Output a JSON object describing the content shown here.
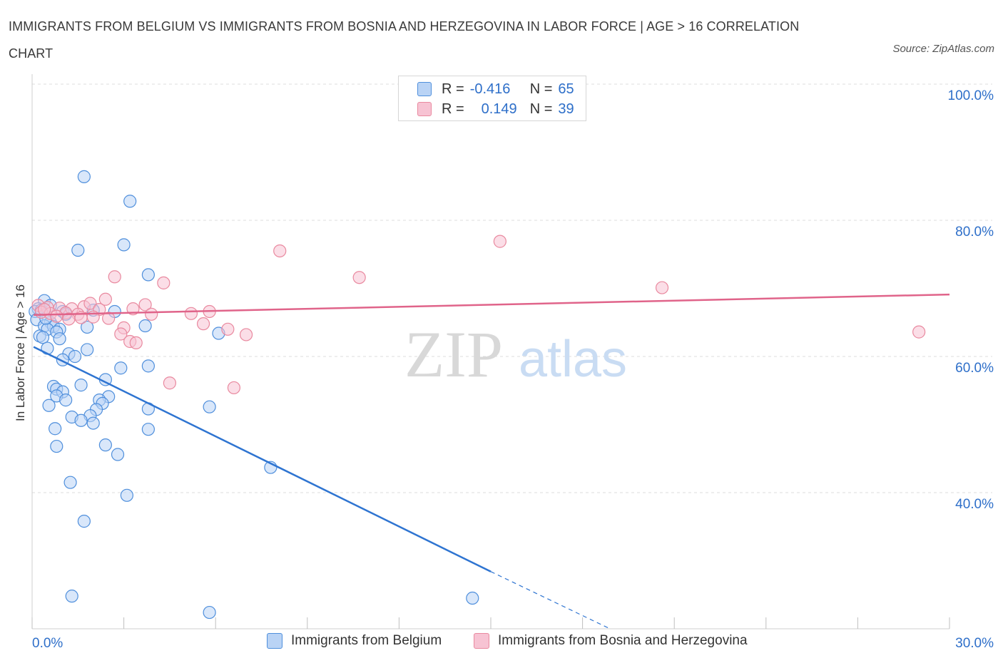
{
  "title": "IMMIGRANTS FROM BELGIUM VS IMMIGRANTS FROM BOSNIA AND HERZEGOVINA IN LABOR FORCE | AGE > 16 CORRELATION CHART",
  "source": "Source: ZipAtlas.com",
  "watermark": {
    "zip": "ZIP",
    "atlas": "atlas"
  },
  "colors": {
    "blue_fill": "#b9d3f5",
    "blue_stroke": "#4f8fdc",
    "blue_line": "#2e74d1",
    "pink_fill": "#f7c3d3",
    "pink_stroke": "#e9899f",
    "pink_line": "#e0648a",
    "axis_label": "#2e6fc9",
    "grid": "#dddddd"
  },
  "legend": {
    "rows": [
      {
        "r_label": "R =",
        "r_value": "-0.416",
        "n_label": "N =",
        "n_value": "65"
      },
      {
        "r_label": "R =",
        "r_value": "0.149",
        "n_label": "N =",
        "n_value": "39"
      }
    ]
  },
  "chart_data": {
    "type": "scatter",
    "title": "IMMIGRANTS FROM BELGIUM VS IMMIGRANTS FROM BOSNIA AND HERZEGOVINA IN LABOR FORCE | AGE > 16 CORRELATION CHART",
    "xlabel": "",
    "ylabel": "In Labor Force | Age > 16",
    "xlim": [
      0,
      30
    ],
    "ylim": [
      20,
      100
    ],
    "x_tick_labels": [
      "0.0%",
      "30.0%"
    ],
    "y_ticks": [
      40,
      60,
      80,
      100
    ],
    "y_tick_labels": [
      "40.0%",
      "60.0%",
      "80.0%",
      "100.0%"
    ],
    "grid": true,
    "legend_position": "top-center",
    "series": [
      {
        "name": "Immigrants from Belgium",
        "r": -0.416,
        "n": 65,
        "trend": {
          "x0": 0.05,
          "y0": 61.4,
          "x1": 15.0,
          "y1": 28.4,
          "dash_x1": 18.9,
          "dash_y1": 20.0
        },
        "points": [
          [
            1.7,
            86.4
          ],
          [
            3.2,
            82.8
          ],
          [
            1.5,
            75.6
          ],
          [
            3.0,
            76.4
          ],
          [
            3.8,
            72.0
          ],
          [
            0.4,
            68.2
          ],
          [
            0.2,
            67.0
          ],
          [
            0.1,
            66.6
          ],
          [
            0.15,
            65.4
          ],
          [
            0.3,
            66.8
          ],
          [
            1.0,
            66.6
          ],
          [
            2.0,
            66.8
          ],
          [
            2.7,
            66.6
          ],
          [
            0.6,
            65.0
          ],
          [
            0.4,
            64.5
          ],
          [
            0.7,
            64.4
          ],
          [
            0.9,
            64.0
          ],
          [
            0.5,
            64.0
          ],
          [
            0.8,
            63.6
          ],
          [
            0.25,
            63.0
          ],
          [
            0.35,
            62.8
          ],
          [
            1.8,
            64.3
          ],
          [
            3.7,
            64.5
          ],
          [
            6.1,
            63.4
          ],
          [
            0.5,
            61.2
          ],
          [
            1.8,
            61.0
          ],
          [
            1.2,
            60.4
          ],
          [
            1.4,
            60.0
          ],
          [
            1.0,
            59.5
          ],
          [
            3.8,
            58.6
          ],
          [
            2.9,
            58.3
          ],
          [
            2.4,
            56.6
          ],
          [
            0.7,
            55.6
          ],
          [
            0.8,
            55.2
          ],
          [
            1.6,
            55.8
          ],
          [
            1.0,
            54.8
          ],
          [
            0.8,
            54.2
          ],
          [
            2.5,
            54.1
          ],
          [
            1.1,
            53.6
          ],
          [
            2.2,
            53.6
          ],
          [
            2.3,
            53.1
          ],
          [
            0.55,
            52.8
          ],
          [
            2.1,
            52.2
          ],
          [
            3.8,
            52.3
          ],
          [
            5.8,
            52.6
          ],
          [
            1.3,
            51.1
          ],
          [
            1.9,
            51.3
          ],
          [
            1.6,
            50.6
          ],
          [
            2.0,
            50.2
          ],
          [
            0.75,
            49.4
          ],
          [
            3.8,
            49.3
          ],
          [
            2.4,
            47.0
          ],
          [
            0.8,
            46.8
          ],
          [
            2.8,
            45.6
          ],
          [
            7.8,
            43.7
          ],
          [
            1.25,
            41.5
          ],
          [
            3.1,
            39.6
          ],
          [
            1.7,
            35.8
          ],
          [
            1.3,
            24.8
          ],
          [
            5.8,
            22.4
          ],
          [
            14.4,
            24.5
          ],
          [
            0.6,
            67.5
          ],
          [
            1.1,
            66.2
          ],
          [
            0.45,
            65.6
          ],
          [
            0.9,
            62.6
          ]
        ]
      },
      {
        "name": "Immigrants from Bosnia and Herzegovina",
        "r": 0.149,
        "n": 39,
        "trend": {
          "x0": 0.05,
          "y0": 66.1,
          "x1": 30.0,
          "y1": 69.1
        },
        "points": [
          [
            8.1,
            75.5
          ],
          [
            15.3,
            76.9
          ],
          [
            2.7,
            71.7
          ],
          [
            10.7,
            71.6
          ],
          [
            4.3,
            70.8
          ],
          [
            20.6,
            70.1
          ],
          [
            0.2,
            67.5
          ],
          [
            0.5,
            67.2
          ],
          [
            0.9,
            67.1
          ],
          [
            1.3,
            67.0
          ],
          [
            1.7,
            67.3
          ],
          [
            1.9,
            67.8
          ],
          [
            2.2,
            66.9
          ],
          [
            2.4,
            68.4
          ],
          [
            3.3,
            67.0
          ],
          [
            3.7,
            67.6
          ],
          [
            0.3,
            66.5
          ],
          [
            0.6,
            66.3
          ],
          [
            1.1,
            66.4
          ],
          [
            1.5,
            66.2
          ],
          [
            2.0,
            65.8
          ],
          [
            2.5,
            65.6
          ],
          [
            3.9,
            66.2
          ],
          [
            5.2,
            66.3
          ],
          [
            5.8,
            66.6
          ],
          [
            1.2,
            65.5
          ],
          [
            0.8,
            65.9
          ],
          [
            5.6,
            64.8
          ],
          [
            3.0,
            64.2
          ],
          [
            6.4,
            64.0
          ],
          [
            2.9,
            63.3
          ],
          [
            7.0,
            63.2
          ],
          [
            3.2,
            62.2
          ],
          [
            3.4,
            62.0
          ],
          [
            29.0,
            63.6
          ],
          [
            4.5,
            56.1
          ],
          [
            6.6,
            55.4
          ],
          [
            0.4,
            66.9
          ],
          [
            1.6,
            65.7
          ]
        ]
      }
    ]
  }
}
